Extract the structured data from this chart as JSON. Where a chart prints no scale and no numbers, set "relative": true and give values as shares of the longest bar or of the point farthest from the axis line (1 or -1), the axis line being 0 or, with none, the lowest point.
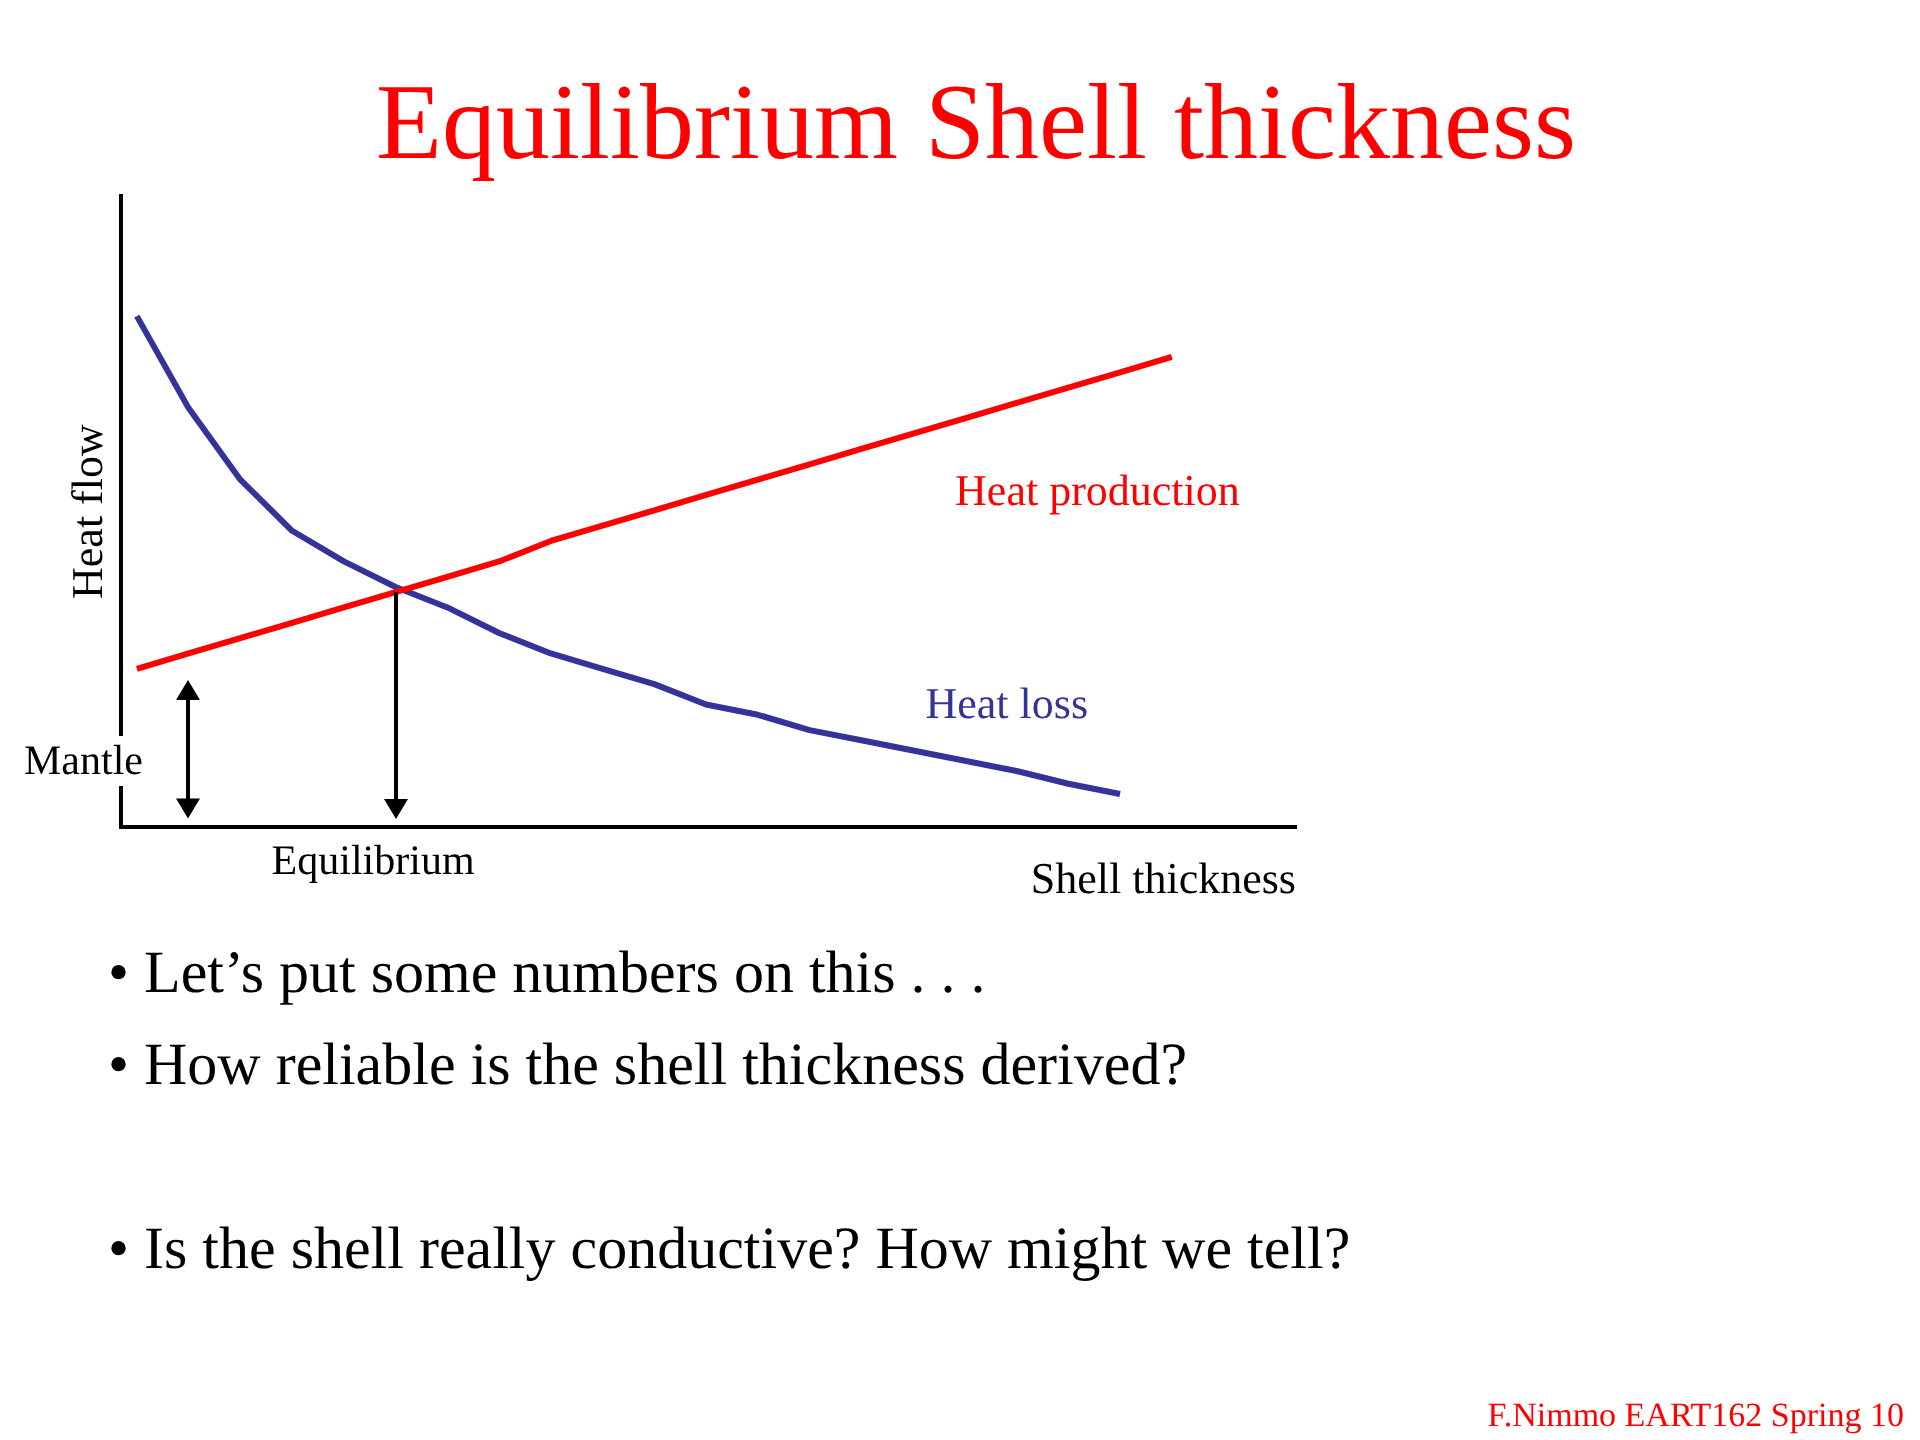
{
  "chart_data": {
    "type": "line",
    "title": "Equilibrium Shell thickness",
    "xlabel": "Shell thickness",
    "ylabel": "Heat flow",
    "relative": true,
    "legend": false,
    "marker": "none",
    "categories": [
      null,
      null,
      null,
      null,
      null,
      null,
      null,
      null,
      null,
      null,
      null,
      null,
      null,
      null,
      null,
      null,
      null,
      null,
      null,
      null,
      null
    ],
    "series": [
      {
        "name": "Heat production",
        "color": "#ff0000",
        "values": [
          0.31,
          0.34,
          0.37,
          0.4,
          0.43,
          0.46,
          0.49,
          0.52,
          0.56,
          0.59,
          0.62,
          0.65,
          0.68,
          0.71,
          0.74,
          0.77,
          0.8,
          0.83,
          0.86,
          0.89,
          0.92
        ]
      },
      {
        "name": "Heat loss",
        "color": "#333399",
        "values": [
          1,
          0.82,
          0.68,
          0.58,
          0.52,
          0.47,
          0.43,
          0.38,
          0.34,
          0.31,
          0.28,
          0.24,
          0.22,
          0.19,
          0.17,
          0.15,
          0.13,
          0.11,
          0.085,
          0.065,
          null
        ]
      }
    ],
    "annotations": [
      "Mantle",
      "Equilibrium",
      "• Let’s put some numbers on this . . .",
      "• How reliable is the shell thickness derived?",
      "• Is the shell really conductive? How might we tell?",
      "F.Nimmo EART162 Spring 10"
    ]
  }
}
